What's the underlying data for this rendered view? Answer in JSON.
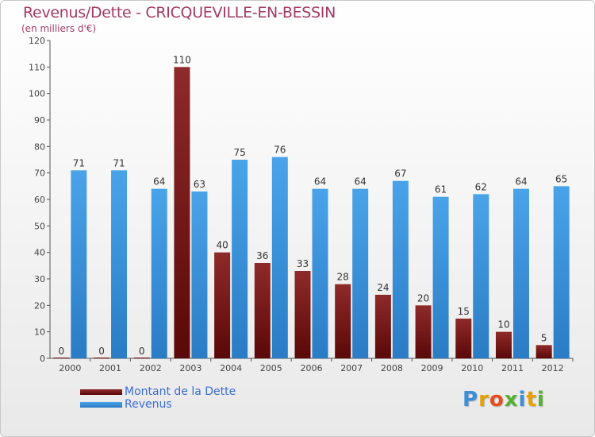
{
  "chart_data": {
    "type": "bar",
    "title": "Revenus/Dette - CRICQUEVILLE-EN-BESSIN",
    "subtitle": "(en milliers d'€)",
    "categories": [
      "2000",
      "2001",
      "2002",
      "2003",
      "2004",
      "2005",
      "2006",
      "2007",
      "2008",
      "2009",
      "2010",
      "2011",
      "2012"
    ],
    "series": [
      {
        "name": "Montant de la Dette",
        "color": "#7a1414",
        "values": [
          0,
          0,
          0,
          110,
          40,
          36,
          33,
          28,
          24,
          20,
          15,
          10,
          5
        ]
      },
      {
        "name": "Revenus",
        "color": "#3a8fd8",
        "values": [
          71,
          71,
          64,
          63,
          75,
          76,
          64,
          64,
          67,
          61,
          62,
          64,
          65
        ]
      }
    ],
    "ylim": [
      0,
      120
    ],
    "yticks": [
      0,
      10,
      20,
      30,
      40,
      50,
      60,
      70,
      80,
      90,
      100,
      110,
      120
    ],
    "grid": false,
    "legend": "bottom-left"
  },
  "logo": {
    "letters": [
      "P",
      "r",
      "o",
      "x",
      "i",
      "t",
      "i"
    ],
    "colors": [
      "#3a8fd8",
      "#e8a000",
      "#e84b1a",
      "#58b030",
      "#3a8fd8",
      "#e8a000",
      "#58b030"
    ]
  }
}
